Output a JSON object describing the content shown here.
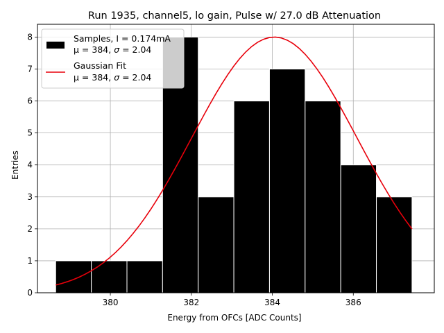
{
  "chart_data": {
    "type": "bar",
    "title": "Run 1935, channel5, lo gain, Pulse w/ 27.0 dB Attenuation",
    "xlabel": "Energy from OFCs [ADC Counts]",
    "ylabel": "Entries",
    "xlim": [
      378.2,
      388.0
    ],
    "ylim": [
      0,
      8.4
    ],
    "grid": true,
    "xticks": [
      380,
      382,
      384,
      386
    ],
    "yticks": [
      0,
      1,
      2,
      3,
      4,
      5,
      6,
      7,
      8
    ],
    "bin_edges": [
      378.65,
      379.53,
      380.41,
      381.29,
      382.17,
      383.05,
      383.93,
      384.81,
      385.69,
      386.57,
      387.45
    ],
    "values": [
      1,
      1,
      1,
      8,
      3,
      6,
      7,
      6,
      4,
      3
    ],
    "bar_color": "#000000",
    "series": [
      {
        "name": "Samples",
        "kind": "histogram",
        "legend_line1": "Samples, I = 0.174mA",
        "legend_line2_prefix": "μ = 384, ",
        "legend_line2_sigma": "σ",
        "legend_line2_suffix": " = 2.04",
        "color": "#000000"
      },
      {
        "name": "Gaussian Fit",
        "kind": "line",
        "legend_line1": "Gaussian Fit",
        "legend_line2_prefix": "μ = 384, ",
        "legend_line2_sigma": "σ",
        "legend_line2_suffix": " = 2.04",
        "color": "#e8000b",
        "amplitude": 8.0,
        "mu": 384.05,
        "sigma": 2.04,
        "x_range": [
          378.65,
          387.45
        ]
      }
    ],
    "legend_location": "top-left"
  }
}
